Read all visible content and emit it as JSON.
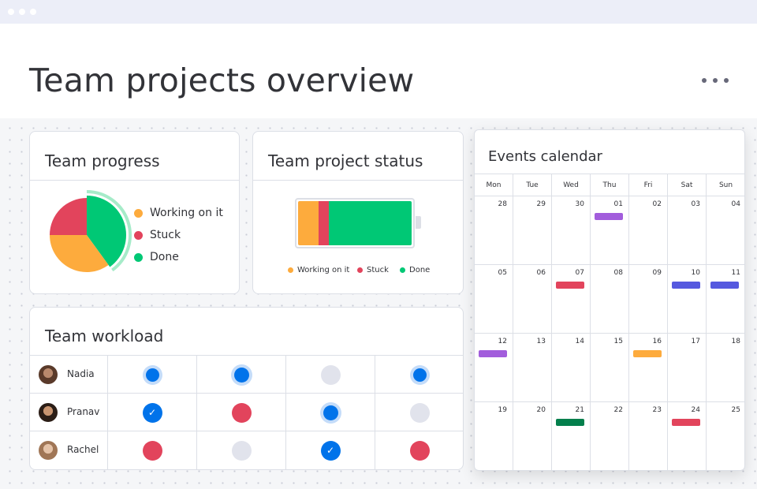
{
  "page": {
    "title": "Team projects overview"
  },
  "colors": {
    "working": "#fdab3d",
    "stuck": "#e2445c",
    "done": "#00c875",
    "blue": "#0073ea",
    "purple": "#a25ddc",
    "indigo": "#5559df",
    "green": "#037f4c",
    "gray": "#e1e3ec"
  },
  "progress": {
    "title": "Team progress",
    "legend": [
      "Working on it",
      "Stuck",
      "Done"
    ],
    "chart_data": {
      "type": "pie",
      "categories": [
        "Working on it",
        "Stuck",
        "Done"
      ],
      "values": [
        35,
        25,
        40
      ]
    }
  },
  "status": {
    "title": "Team project status",
    "legend": [
      "Working on it",
      "Stuck",
      "Done"
    ],
    "chart_data": {
      "type": "bar",
      "categories": [
        "Working on it",
        "Stuck",
        "Done"
      ],
      "values": [
        18,
        9,
        73
      ]
    }
  },
  "workload": {
    "title": "Team workload",
    "people": [
      {
        "name": "Nadia",
        "cells": [
          "blue-ring-small",
          "blue-ring",
          "gray",
          "blue-ring-small"
        ]
      },
      {
        "name": "Pranav",
        "cells": [
          "blue-check",
          "red",
          "blue-ring",
          "gray"
        ]
      },
      {
        "name": "Rachel",
        "cells": [
          "red",
          "gray",
          "blue-check",
          "red"
        ]
      }
    ]
  },
  "calendar": {
    "title": "Events calendar",
    "days": [
      "Mon",
      "Tue",
      "Wed",
      "Thu",
      "Fri",
      "Sat",
      "Sun"
    ],
    "weeks": [
      [
        "28",
        "29",
        "30",
        "01",
        "02",
        "03",
        "04"
      ],
      [
        "05",
        "06",
        "07",
        "08",
        "09",
        "10",
        "11"
      ],
      [
        "12",
        "13",
        "14",
        "15",
        "16",
        "17",
        "18"
      ],
      [
        "19",
        "20",
        "21",
        "22",
        "23",
        "24",
        "25"
      ]
    ],
    "events": [
      {
        "week": 0,
        "day": 3,
        "color": "#a25ddc"
      },
      {
        "week": 1,
        "day": 2,
        "color": "#e2445c"
      },
      {
        "week": 1,
        "day": 5,
        "color": "#5559df"
      },
      {
        "week": 1,
        "day": 6,
        "color": "#5559df"
      },
      {
        "week": 2,
        "day": 0,
        "color": "#a25ddc"
      },
      {
        "week": 2,
        "day": 4,
        "color": "#fdab3d"
      },
      {
        "week": 3,
        "day": 2,
        "color": "#037f4c"
      },
      {
        "week": 3,
        "day": 5,
        "color": "#e2445c"
      }
    ]
  }
}
